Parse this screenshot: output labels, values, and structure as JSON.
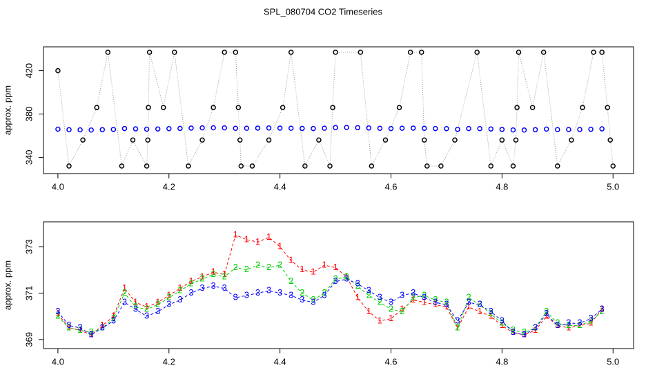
{
  "chart_data": [
    {
      "type": "scatter",
      "title": "SPL_080704  CO2 Timeseries",
      "ylabel": "approx. ppm",
      "xlim": [
        3.974,
        5.037
      ],
      "ylim": [
        325,
        442
      ],
      "xticks": [
        {
          "value": 4,
          "label": "4.0"
        },
        {
          "value": 4.2,
          "label": "4.2"
        },
        {
          "value": 4.4,
          "label": "4.4"
        },
        {
          "value": 4.6,
          "label": "4.6"
        },
        {
          "value": 4.8,
          "label": "4.8"
        },
        {
          "value": 5,
          "label": "5.0"
        }
      ],
      "yticks": [
        340,
        380,
        420
      ],
      "x": [
        4.0,
        4.02,
        4.04,
        4.06,
        4.08,
        4.1,
        4.12,
        4.14,
        4.16,
        4.18,
        4.2,
        4.22,
        4.24,
        4.26,
        4.28,
        4.3,
        4.32,
        4.34,
        4.36,
        4.38,
        4.4,
        4.42,
        4.44,
        4.46,
        4.48,
        4.5,
        4.52,
        4.54,
        4.56,
        4.58,
        4.6,
        4.62,
        4.64,
        4.66,
        4.68,
        4.7,
        4.72,
        4.74,
        4.76,
        4.78,
        4.8,
        4.82,
        4.84,
        4.86,
        4.88,
        4.9,
        4.92,
        4.94,
        4.96,
        4.98
      ],
      "series": [
        {
          "color": "#000000",
          "line": "dotted",
          "line_color": "#999999",
          "x": [
            4.0,
            4.02,
            4.045,
            4.07,
            4.09,
            4.115,
            4.135,
            4.16,
            4.162,
            4.163,
            4.165,
            4.19,
            4.21,
            4.235,
            4.26,
            4.28,
            4.3,
            4.32,
            4.325,
            4.328,
            4.33,
            4.35,
            4.38,
            4.405,
            4.42,
            4.445,
            4.47,
            4.49,
            4.495,
            4.5,
            4.545,
            4.565,
            4.59,
            4.615,
            4.635,
            4.655,
            4.66,
            4.665,
            4.69,
            4.715,
            4.755,
            4.78,
            4.8,
            4.82,
            4.825,
            4.827,
            4.83,
            4.855,
            4.875,
            4.9,
            4.925,
            4.945,
            4.965,
            4.98,
            4.99,
            4.995,
            5.0
          ],
          "values": [
            420,
            332,
            356,
            386,
            437,
            332,
            356,
            332,
            356,
            386,
            437,
            386,
            437,
            332,
            356,
            386,
            437,
            437,
            386,
            356,
            332,
            332,
            356,
            386,
            437,
            332,
            356,
            332,
            386,
            437,
            437,
            332,
            356,
            386,
            437,
            437,
            356,
            332,
            332,
            356,
            437,
            332,
            356,
            332,
            356,
            386,
            437,
            386,
            437,
            332,
            356,
            386,
            437,
            437,
            386,
            356,
            332
          ]
        },
        {
          "color": "#0000ff",
          "values": [
            366,
            365.5,
            365.4,
            365.2,
            365.5,
            365.8,
            366.6,
            366.3,
            366,
            366.2,
            366.5,
            366.7,
            367,
            367.2,
            367.3,
            367.2,
            366.8,
            366.9,
            367,
            367.1,
            367,
            366.9,
            366.7,
            366.6,
            366.9,
            367.5,
            367.6,
            367.4,
            367.1,
            366.8,
            366.6,
            366.9,
            367,
            366.8,
            366.6,
            366.5,
            365.8,
            366.6,
            366.5,
            366.2,
            365.8,
            365.3,
            365.2,
            365.5,
            366.1,
            365.6,
            365.7,
            365.7,
            365.9,
            366.3
          ]
        }
      ]
    },
    {
      "type": "line",
      "ylabel": "approx. ppm",
      "xlim": [
        3.974,
        5.037
      ],
      "ylim": [
        368.61,
        374.07
      ],
      "xticks": [
        {
          "value": 4,
          "label": "4.0"
        },
        {
          "value": 4.2,
          "label": "4.2"
        },
        {
          "value": 4.4,
          "label": "4.4"
        },
        {
          "value": 4.6,
          "label": "4.6"
        },
        {
          "value": 4.8,
          "label": "4.8"
        },
        {
          "value": 5,
          "label": "5.0"
        }
      ],
      "yticks": [
        369,
        371,
        373
      ],
      "x": [
        4.0,
        4.02,
        4.04,
        4.06,
        4.08,
        4.1,
        4.12,
        4.14,
        4.16,
        4.18,
        4.2,
        4.22,
        4.24,
        4.26,
        4.28,
        4.3,
        4.32,
        4.34,
        4.36,
        4.38,
        4.4,
        4.42,
        4.44,
        4.46,
        4.48,
        4.5,
        4.52,
        4.54,
        4.56,
        4.58,
        4.6,
        4.62,
        4.64,
        4.66,
        4.68,
        4.7,
        4.72,
        4.74,
        4.76,
        4.78,
        4.8,
        4.82,
        4.84,
        4.86,
        4.88,
        4.9,
        4.92,
        4.94,
        4.96,
        4.98
      ],
      "series": [
        {
          "name": "1",
          "color": "#ff0000",
          "values": [
            370.1,
            369.5,
            369.4,
            369.2,
            369.6,
            370,
            371.2,
            370.6,
            370.4,
            370.6,
            370.9,
            371.2,
            371.5,
            371.7,
            371.9,
            371.8,
            373.5,
            373.3,
            373.2,
            373.4,
            373,
            372.4,
            372,
            371.9,
            372.2,
            372.1,
            371.7,
            370.8,
            370.2,
            369.8,
            369.9,
            370.3,
            370.7,
            370.6,
            370.5,
            370.4,
            369.5,
            370.4,
            370.2,
            370,
            369.6,
            369.3,
            369.2,
            369.4,
            370,
            369.6,
            369.5,
            369.6,
            369.7,
            370.3
          ]
        },
        {
          "name": "2",
          "color": "#00cd00",
          "values": [
            370,
            369.5,
            369.4,
            369.3,
            369.5,
            369.9,
            371,
            370.4,
            370.3,
            370.5,
            370.8,
            371.1,
            371.4,
            371.6,
            371.8,
            371.7,
            372.1,
            372,
            372.2,
            372.1,
            372.2,
            371.5,
            371,
            370.7,
            371,
            371.6,
            371.7,
            371.3,
            370.9,
            370.6,
            370.3,
            370.2,
            370.8,
            370.9,
            370.7,
            370.6,
            369.5,
            370.8,
            370.5,
            370.1,
            369.7,
            369.4,
            369.3,
            369.5,
            370.2,
            369.7,
            369.6,
            369.6,
            369.8,
            370.2
          ]
        },
        {
          "name": "3",
          "color": "#0000ff",
          "values": [
            370.2,
            369.6,
            369.5,
            369.2,
            369.5,
            369.8,
            370.6,
            370.3,
            370,
            370.2,
            370.5,
            370.7,
            371,
            371.2,
            371.3,
            371.2,
            370.8,
            370.9,
            371,
            371.1,
            371,
            370.9,
            370.7,
            370.6,
            370.9,
            371.5,
            371.6,
            371.4,
            371.1,
            370.8,
            370.6,
            370.9,
            371,
            370.8,
            370.6,
            370.5,
            369.8,
            370.6,
            370.5,
            370.2,
            369.8,
            369.3,
            369.2,
            369.5,
            370.1,
            369.6,
            369.7,
            369.7,
            369.9,
            370.3
          ]
        }
      ]
    }
  ]
}
